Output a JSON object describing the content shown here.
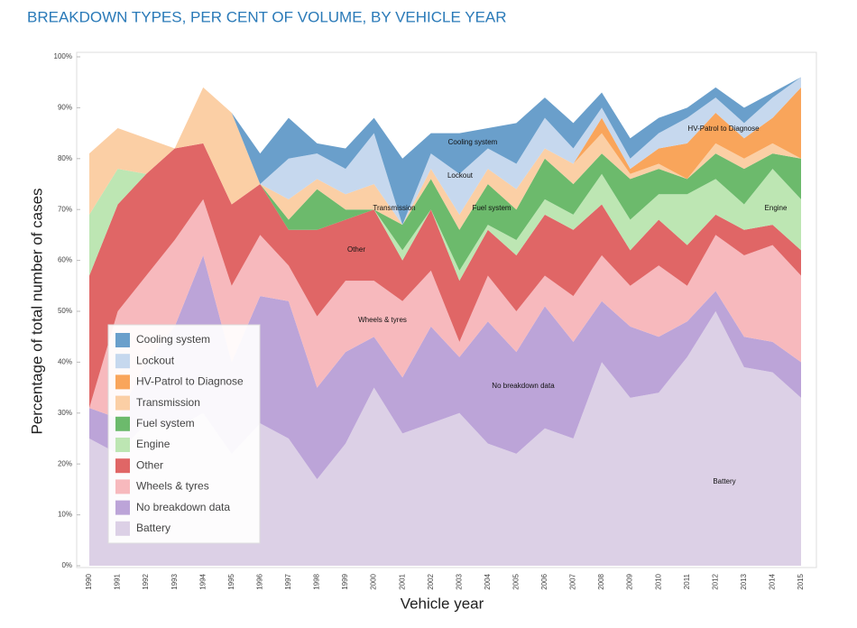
{
  "chart_data": {
    "type": "stacked_area",
    "title": "BREAKDOWN TYPES, PER CENT OF VOLUME, BY VEHICLE YEAR",
    "x_label": "Vehicle year",
    "y_label": "Percentage of total number of cases",
    "categories": [
      "1990",
      "1991",
      "1992",
      "1993",
      "1994",
      "1995",
      "1996",
      "1997",
      "1998",
      "1999",
      "2000",
      "2001",
      "2002",
      "2003",
      "2004",
      "2005",
      "2006",
      "2007",
      "2008",
      "2009",
      "2010",
      "2011",
      "2012",
      "2013",
      "2014",
      "2015"
    ],
    "ylim": [
      0,
      100
    ],
    "yticks": [
      {
        "value": 0,
        "label": "0%"
      },
      {
        "value": 10,
        "label": "10%"
      },
      {
        "value": 20,
        "label": "20%"
      },
      {
        "value": 30,
        "label": "30%"
      },
      {
        "value": 40,
        "label": "40%"
      },
      {
        "value": 50,
        "label": "50%"
      },
      {
        "value": 60,
        "label": "60%"
      },
      {
        "value": 70,
        "label": "70%"
      },
      {
        "value": 80,
        "label": "80%"
      },
      {
        "value": 90,
        "label": "90%"
      },
      {
        "value": 100,
        "label": "100%"
      }
    ],
    "legend": "lower left",
    "series": [
      {
        "name": "Cooling system",
        "color": "#6a9fcb",
        "values": [
          0,
          0,
          0,
          0,
          0,
          0,
          6,
          8,
          2,
          4,
          3,
          13,
          4,
          8,
          4,
          8,
          4,
          5,
          3,
          4,
          3,
          2,
          2,
          3,
          1,
          0
        ]
      },
      {
        "name": "Lockout",
        "color": "#c6d8ee",
        "values": [
          0,
          0,
          0,
          0,
          0,
          0,
          0,
          8,
          5,
          5,
          10,
          0,
          3,
          8,
          4,
          5,
          6,
          3,
          2,
          2,
          3,
          5,
          3,
          3,
          4,
          2
        ]
      },
      {
        "name": "HV-Patrol to Diagnose",
        "color": "#f9a55b",
        "values": [
          0,
          0,
          0,
          0,
          0,
          0,
          0,
          0,
          0,
          0,
          0,
          0,
          0,
          0,
          0,
          0,
          0,
          0,
          3,
          1,
          3,
          7,
          6,
          4,
          5,
          14
        ]
      },
      {
        "name": "Transmission",
        "color": "#fbcfa5",
        "values": [
          12,
          8,
          7,
          0,
          11,
          18,
          0,
          4,
          2,
          3,
          5,
          0,
          2,
          3,
          3,
          4,
          2,
          4,
          4,
          1,
          1,
          0,
          2,
          2,
          2,
          0
        ]
      },
      {
        "name": "Fuel system",
        "color": "#6cba6c",
        "values": [
          0,
          0,
          0,
          0,
          0,
          0,
          0,
          2,
          8,
          2,
          0,
          5,
          6,
          8,
          8,
          6,
          8,
          6,
          4,
          8,
          5,
          3,
          5,
          7,
          3,
          8
        ]
      },
      {
        "name": "Engine",
        "color": "#bde6b3",
        "values": [
          12,
          7,
          0,
          0,
          0,
          0,
          0,
          0,
          0,
          0,
          0,
          2,
          0,
          2,
          1,
          3,
          3,
          3,
          6,
          6,
          5,
          10,
          7,
          5,
          11,
          10
        ]
      },
      {
        "name": "Other",
        "color": "#e06666",
        "values": [
          26,
          21,
          20,
          18,
          11,
          16,
          10,
          7,
          17,
          12,
          14,
          8,
          12,
          12,
          9,
          11,
          12,
          13,
          10,
          7,
          9,
          8,
          4,
          5,
          4,
          5
        ]
      },
      {
        "name": "Wheels & tyres",
        "color": "#f7b9bd",
        "values": [
          0,
          21,
          17,
          17,
          11,
          15,
          12,
          7,
          14,
          14,
          11,
          15,
          11,
          3,
          9,
          8,
          6,
          9,
          9,
          8,
          14,
          7,
          11,
          16,
          19,
          17
        ]
      },
      {
        "name": "No breakdown data",
        "color": "#bca4d8",
        "values": [
          6,
          7,
          12,
          20,
          31,
          18,
          25,
          27,
          18,
          18,
          10,
          11,
          19,
          11,
          24,
          20,
          24,
          19,
          12,
          14,
          11,
          7,
          4,
          6,
          6,
          7
        ]
      },
      {
        "name": "Battery",
        "color": "#dcd0e6",
        "values": [
          25,
          22,
          28,
          27,
          30,
          22,
          28,
          25,
          17,
          24,
          35,
          26,
          28,
          30,
          24,
          22,
          27,
          25,
          40,
          33,
          34,
          41,
          50,
          39,
          38,
          33
        ]
      }
    ]
  }
}
